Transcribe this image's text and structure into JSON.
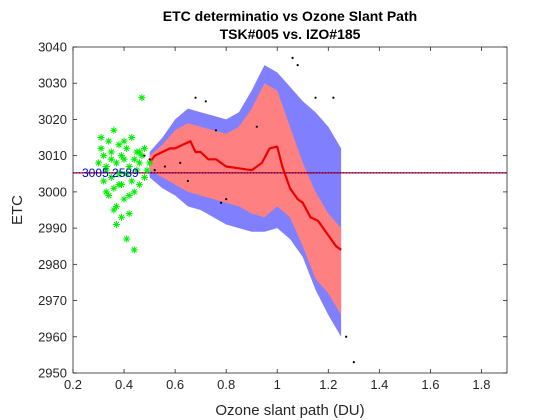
{
  "chart_data": {
    "type": "scatter",
    "title": "ETC determinatio  vs Ozone Slant Path",
    "subtitle": "TSK#005 vs. IZO#185",
    "xlabel": "Ozone slant path (DU)",
    "ylabel": "ETC",
    "xlim": [
      0.2,
      1.9
    ],
    "ylim": [
      2950,
      3040
    ],
    "xticks": [
      0.2,
      0.4,
      0.6,
      0.8,
      1.0,
      1.2,
      1.4,
      1.6,
      1.8
    ],
    "xtick_labels": [
      "0.2",
      "0.4",
      "0.6",
      "0.8",
      "1",
      "1.2",
      "1.4",
      "1.6",
      "1.8"
    ],
    "yticks": [
      2950,
      2960,
      2970,
      2980,
      2990,
      3000,
      3010,
      3020,
      3030,
      3040
    ],
    "ytick_labels": [
      "2950",
      "2960",
      "2970",
      "2980",
      "2990",
      "3000",
      "3010",
      "3020",
      "3030",
      "3040"
    ],
    "grid": false,
    "reference_line": {
      "y": 3005.2589,
      "label": "3005.2589",
      "color": "#cc0000",
      "dot_color": "#0000cc"
    },
    "outer_band": {
      "color": "#8080ff",
      "x": [
        0.5,
        0.55,
        0.6,
        0.65,
        0.7,
        0.75,
        0.8,
        0.85,
        0.9,
        0.95,
        1.0,
        1.05,
        1.1,
        1.15,
        1.2,
        1.25
      ],
      "upper": [
        3011,
        3015,
        3020,
        3023,
        3022,
        3021,
        3020,
        3022,
        3028,
        3035,
        3033,
        3029,
        3025,
        3022,
        3018,
        3012
      ],
      "lower": [
        3004,
        3001,
        2999,
        2996,
        2995,
        2993,
        2991,
        2990,
        2989,
        2989,
        2990,
        2987,
        2982,
        2973,
        2966,
        2960
      ]
    },
    "inner_band": {
      "color": "#ff8080",
      "x": [
        0.5,
        0.55,
        0.6,
        0.65,
        0.7,
        0.75,
        0.8,
        0.85,
        0.9,
        0.95,
        1.0,
        1.05,
        1.1,
        1.15,
        1.2,
        1.25
      ],
      "upper": [
        3010,
        3013,
        3017,
        3019,
        3018,
        3017,
        3016,
        3018,
        3023,
        3030,
        3028,
        3018,
        3008,
        3000,
        2994,
        2990
      ],
      "lower": [
        3006,
        3004,
        3002,
        3000,
        2999,
        2998,
        2997,
        2996,
        2994,
        2993,
        2996,
        2993,
        2985,
        2976,
        2972,
        2966
      ]
    },
    "series": [
      {
        "type": "line",
        "color": "#ee0000",
        "x": [
          0.5,
          0.52,
          0.55,
          0.58,
          0.6,
          0.63,
          0.66,
          0.68,
          0.7,
          0.73,
          0.76,
          0.8,
          0.85,
          0.9,
          0.94,
          0.97,
          1.0,
          1.02,
          1.05,
          1.08,
          1.1,
          1.13,
          1.16,
          1.2,
          1.23,
          1.25
        ],
        "y": [
          3008,
          3010,
          3011,
          3012,
          3012,
          3013,
          3014,
          3011,
          3011,
          3009,
          3009,
          3007,
          3006.5,
          3006,
          3008,
          3012,
          3012.5,
          3007,
          3001,
          2998,
          2997,
          2993,
          2992,
          2988,
          2985,
          2984
        ]
      },
      {
        "type": "scatter",
        "marker": "asterisk",
        "color": "#00ee00",
        "x": [
          0.3,
          0.31,
          0.32,
          0.32,
          0.33,
          0.33,
          0.34,
          0.34,
          0.35,
          0.35,
          0.36,
          0.36,
          0.37,
          0.37,
          0.38,
          0.38,
          0.39,
          0.39,
          0.4,
          0.4,
          0.41,
          0.41,
          0.42,
          0.42,
          0.43,
          0.43,
          0.44,
          0.44,
          0.45,
          0.45,
          0.46,
          0.46,
          0.47,
          0.48,
          0.49,
          0.5,
          0.31,
          0.35,
          0.37,
          0.39,
          0.41,
          0.44,
          0.47,
          0.33,
          0.36,
          0.38,
          0.4,
          0.42,
          0.46,
          0.48
        ],
        "y": [
          3008,
          3012,
          3003,
          3010,
          3000,
          3006,
          3014,
          2999,
          3011,
          3004,
          3017,
          3001,
          3008,
          2996,
          3013,
          3002,
          3010,
          2993,
          3009,
          2998,
          3012,
          3005,
          3007,
          2994,
          3015,
          3003,
          3009,
          3000,
          3011,
          3006,
          3008,
          3002,
          3010,
          3012,
          3006,
          3008,
          3015,
          3009,
          2991,
          3002,
          2987,
          2984,
          3026,
          3007,
          2995,
          3005,
          3014,
          2999,
          3011,
          3004
        ]
      },
      {
        "type": "scatter",
        "marker": "dot",
        "color": "#000000",
        "x": [
          0.48,
          0.5,
          0.52,
          0.56,
          0.62,
          0.65,
          0.68,
          0.72,
          0.76,
          0.78,
          0.8,
          0.92,
          1.06,
          1.08,
          1.15,
          1.22,
          1.27,
          1.3
        ],
        "y": [
          3010,
          3009,
          3006,
          3007,
          3008,
          3003,
          3026,
          3025,
          3017,
          2997,
          2998,
          3018,
          3037,
          3035,
          3026,
          3026,
          2960,
          2953
        ]
      }
    ]
  }
}
